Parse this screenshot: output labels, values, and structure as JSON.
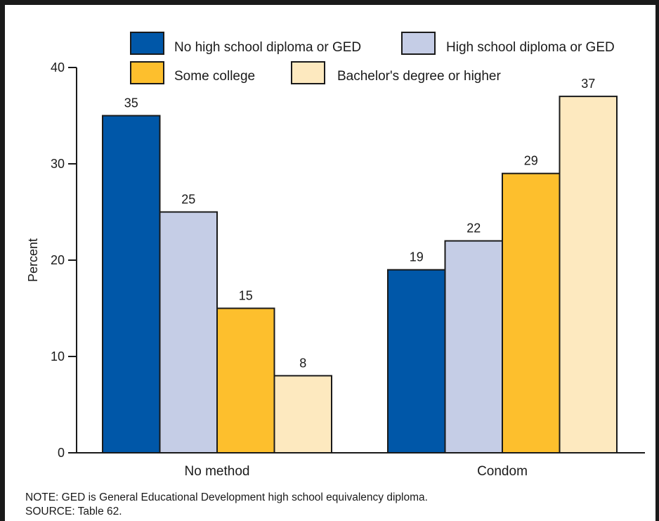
{
  "chart_data": {
    "type": "bar",
    "categories": [
      "No method",
      "Condom"
    ],
    "ylabel": "Percent",
    "ylim": [
      0,
      40
    ],
    "yticks": [
      0,
      10,
      20,
      30,
      40
    ],
    "grid": false,
    "legend_position": "top",
    "series": [
      {
        "name": "No high school diploma or GED",
        "color": "#0057a8",
        "values": [
          35,
          19
        ]
      },
      {
        "name": "High school diploma or GED",
        "color": "#c5cde6",
        "values": [
          25,
          22
        ]
      },
      {
        "name": "Some college",
        "color": "#fdbf2d",
        "values": [
          15,
          29
        ]
      },
      {
        "name": "Bachelor's degree or higher",
        "color": "#fde9bf",
        "values": [
          8,
          37
        ]
      }
    ]
  },
  "notes": {
    "note": "NOTE: GED is General Educational Development high school equivalency diploma.",
    "source": "SOURCE: Table 62."
  }
}
